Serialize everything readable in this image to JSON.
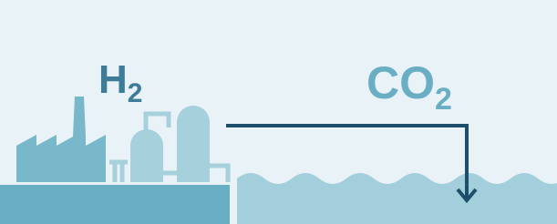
{
  "labels": [
    {
      "text": "H",
      "sub": "2"
    },
    {
      "text": "CO",
      "sub": "2"
    }
  ]
}
